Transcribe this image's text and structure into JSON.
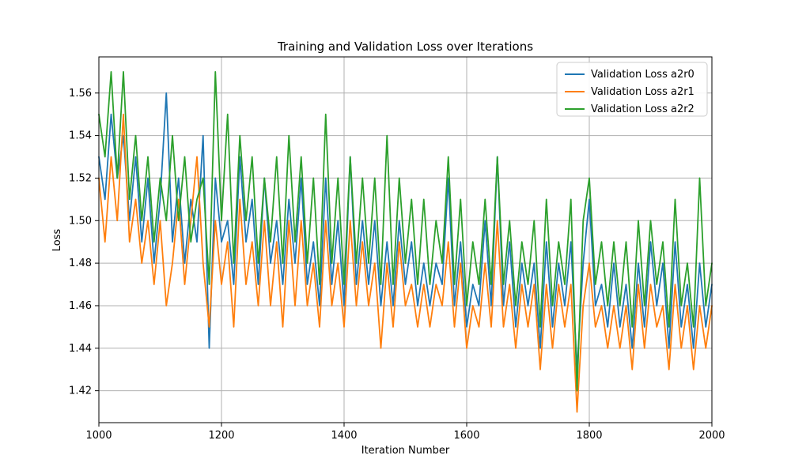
{
  "chart_data": {
    "type": "line",
    "title": "Training and Validation Loss over Iterations",
    "xlabel": "Iteration Number",
    "ylabel": "Loss",
    "xlim": [
      1000,
      2000
    ],
    "ylim": [
      1.405,
      1.577
    ],
    "xticks": [
      1000,
      1200,
      1400,
      1600,
      1800,
      2000
    ],
    "xtick_labels": [
      "1000",
      "1200",
      "1400",
      "1600",
      "1800",
      "2000"
    ],
    "yticks": [
      1.42,
      1.44,
      1.46,
      1.48,
      1.5,
      1.52,
      1.54,
      1.56
    ],
    "ytick_labels": [
      "1.42",
      "1.44",
      "1.46",
      "1.48",
      "1.50",
      "1.52",
      "1.54",
      "1.56"
    ],
    "grid": true,
    "legend_position": "top-right",
    "series": [
      {
        "name": "Validation Loss a2r0",
        "color": "#1f77b4",
        "x": [
          1000,
          1010,
          1020,
          1030,
          1040,
          1050,
          1060,
          1070,
          1080,
          1090,
          1100,
          1110,
          1120,
          1130,
          1140,
          1150,
          1160,
          1170,
          1180,
          1190,
          1200,
          1210,
          1220,
          1230,
          1240,
          1250,
          1260,
          1270,
          1280,
          1290,
          1300,
          1310,
          1320,
          1330,
          1340,
          1350,
          1360,
          1370,
          1380,
          1390,
          1400,
          1410,
          1420,
          1430,
          1440,
          1450,
          1460,
          1470,
          1480,
          1490,
          1500,
          1510,
          1520,
          1530,
          1540,
          1550,
          1560,
          1570,
          1580,
          1590,
          1600,
          1610,
          1620,
          1630,
          1640,
          1650,
          1660,
          1670,
          1680,
          1690,
          1700,
          1710,
          1720,
          1730,
          1740,
          1750,
          1760,
          1770,
          1780,
          1790,
          1800,
          1810,
          1820,
          1830,
          1840,
          1850,
          1860,
          1870,
          1880,
          1890,
          1900,
          1910,
          1920,
          1930,
          1940,
          1950,
          1960,
          1970,
          1980,
          1990,
          2000
        ],
        "y": [
          1.53,
          1.51,
          1.55,
          1.52,
          1.54,
          1.5,
          1.53,
          1.49,
          1.52,
          1.48,
          1.51,
          1.56,
          1.49,
          1.52,
          1.48,
          1.51,
          1.49,
          1.54,
          1.44,
          1.52,
          1.49,
          1.5,
          1.47,
          1.53,
          1.49,
          1.51,
          1.47,
          1.52,
          1.48,
          1.5,
          1.47,
          1.51,
          1.48,
          1.52,
          1.47,
          1.49,
          1.46,
          1.52,
          1.47,
          1.5,
          1.46,
          1.53,
          1.47,
          1.5,
          1.47,
          1.5,
          1.46,
          1.49,
          1.46,
          1.5,
          1.47,
          1.49,
          1.46,
          1.48,
          1.46,
          1.48,
          1.47,
          1.52,
          1.46,
          1.49,
          1.45,
          1.47,
          1.46,
          1.5,
          1.46,
          1.53,
          1.46,
          1.49,
          1.45,
          1.48,
          1.46,
          1.48,
          1.44,
          1.49,
          1.45,
          1.48,
          1.46,
          1.49,
          1.43,
          1.48,
          1.51,
          1.46,
          1.47,
          1.45,
          1.48,
          1.45,
          1.47,
          1.44,
          1.48,
          1.45,
          1.49,
          1.46,
          1.48,
          1.44,
          1.49,
          1.45,
          1.47,
          1.44,
          1.48,
          1.45,
          1.47
        ]
      },
      {
        "name": "Validation Loss a2r1",
        "color": "#ff7f0e",
        "x": [
          1000,
          1010,
          1020,
          1030,
          1040,
          1050,
          1060,
          1070,
          1080,
          1090,
          1100,
          1110,
          1120,
          1130,
          1140,
          1150,
          1160,
          1170,
          1180,
          1190,
          1200,
          1210,
          1220,
          1230,
          1240,
          1250,
          1260,
          1270,
          1280,
          1290,
          1300,
          1310,
          1320,
          1330,
          1340,
          1350,
          1360,
          1370,
          1380,
          1390,
          1400,
          1410,
          1420,
          1430,
          1440,
          1450,
          1460,
          1470,
          1480,
          1490,
          1500,
          1510,
          1520,
          1530,
          1540,
          1550,
          1560,
          1570,
          1580,
          1590,
          1600,
          1610,
          1620,
          1630,
          1640,
          1650,
          1660,
          1670,
          1680,
          1690,
          1700,
          1710,
          1720,
          1730,
          1740,
          1750,
          1760,
          1770,
          1780,
          1790,
          1800,
          1810,
          1820,
          1830,
          1840,
          1850,
          1860,
          1870,
          1880,
          1890,
          1900,
          1910,
          1920,
          1930,
          1940,
          1950,
          1960,
          1970,
          1980,
          1990,
          2000
        ],
        "y": [
          1.52,
          1.49,
          1.53,
          1.5,
          1.55,
          1.49,
          1.51,
          1.48,
          1.5,
          1.47,
          1.5,
          1.46,
          1.48,
          1.51,
          1.47,
          1.5,
          1.53,
          1.48,
          1.45,
          1.5,
          1.47,
          1.49,
          1.45,
          1.51,
          1.47,
          1.49,
          1.46,
          1.5,
          1.46,
          1.49,
          1.45,
          1.5,
          1.46,
          1.5,
          1.46,
          1.48,
          1.45,
          1.5,
          1.46,
          1.48,
          1.45,
          1.5,
          1.46,
          1.49,
          1.46,
          1.48,
          1.44,
          1.48,
          1.45,
          1.49,
          1.46,
          1.47,
          1.45,
          1.47,
          1.45,
          1.47,
          1.46,
          1.49,
          1.45,
          1.48,
          1.44,
          1.46,
          1.45,
          1.48,
          1.45,
          1.5,
          1.45,
          1.47,
          1.44,
          1.47,
          1.45,
          1.47,
          1.43,
          1.47,
          1.44,
          1.47,
          1.45,
          1.47,
          1.41,
          1.46,
          1.48,
          1.45,
          1.46,
          1.44,
          1.46,
          1.44,
          1.46,
          1.43,
          1.47,
          1.44,
          1.47,
          1.45,
          1.46,
          1.43,
          1.47,
          1.44,
          1.46,
          1.43,
          1.46,
          1.44,
          1.46
        ]
      },
      {
        "name": "Validation Loss a2r2",
        "color": "#2ca02c",
        "x": [
          1000,
          1010,
          1020,
          1030,
          1040,
          1050,
          1060,
          1070,
          1080,
          1090,
          1100,
          1110,
          1120,
          1130,
          1140,
          1150,
          1160,
          1170,
          1180,
          1190,
          1200,
          1210,
          1220,
          1230,
          1240,
          1250,
          1260,
          1270,
          1280,
          1290,
          1300,
          1310,
          1320,
          1330,
          1340,
          1350,
          1360,
          1370,
          1380,
          1390,
          1400,
          1410,
          1420,
          1430,
          1440,
          1450,
          1460,
          1470,
          1480,
          1490,
          1500,
          1510,
          1520,
          1530,
          1540,
          1550,
          1560,
          1570,
          1580,
          1590,
          1600,
          1610,
          1620,
          1630,
          1640,
          1650,
          1660,
          1670,
          1680,
          1690,
          1700,
          1710,
          1720,
          1730,
          1740,
          1750,
          1760,
          1770,
          1780,
          1790,
          1800,
          1810,
          1820,
          1830,
          1840,
          1850,
          1860,
          1870,
          1880,
          1890,
          1900,
          1910,
          1920,
          1930,
          1940,
          1950,
          1960,
          1970,
          1980,
          1990,
          2000
        ],
        "y": [
          1.55,
          1.53,
          1.57,
          1.52,
          1.57,
          1.51,
          1.54,
          1.5,
          1.53,
          1.49,
          1.52,
          1.5,
          1.54,
          1.5,
          1.53,
          1.49,
          1.51,
          1.52,
          1.47,
          1.57,
          1.5,
          1.55,
          1.48,
          1.54,
          1.5,
          1.53,
          1.48,
          1.52,
          1.49,
          1.53,
          1.48,
          1.54,
          1.49,
          1.53,
          1.48,
          1.52,
          1.47,
          1.55,
          1.48,
          1.52,
          1.47,
          1.53,
          1.48,
          1.52,
          1.48,
          1.52,
          1.47,
          1.54,
          1.47,
          1.52,
          1.48,
          1.51,
          1.47,
          1.51,
          1.47,
          1.5,
          1.48,
          1.53,
          1.47,
          1.51,
          1.46,
          1.49,
          1.47,
          1.51,
          1.47,
          1.53,
          1.47,
          1.5,
          1.46,
          1.49,
          1.47,
          1.5,
          1.45,
          1.51,
          1.46,
          1.49,
          1.47,
          1.51,
          1.42,
          1.5,
          1.52,
          1.47,
          1.49,
          1.46,
          1.49,
          1.46,
          1.49,
          1.45,
          1.5,
          1.46,
          1.5,
          1.47,
          1.49,
          1.45,
          1.51,
          1.46,
          1.48,
          1.45,
          1.52,
          1.46,
          1.48
        ]
      }
    ]
  }
}
